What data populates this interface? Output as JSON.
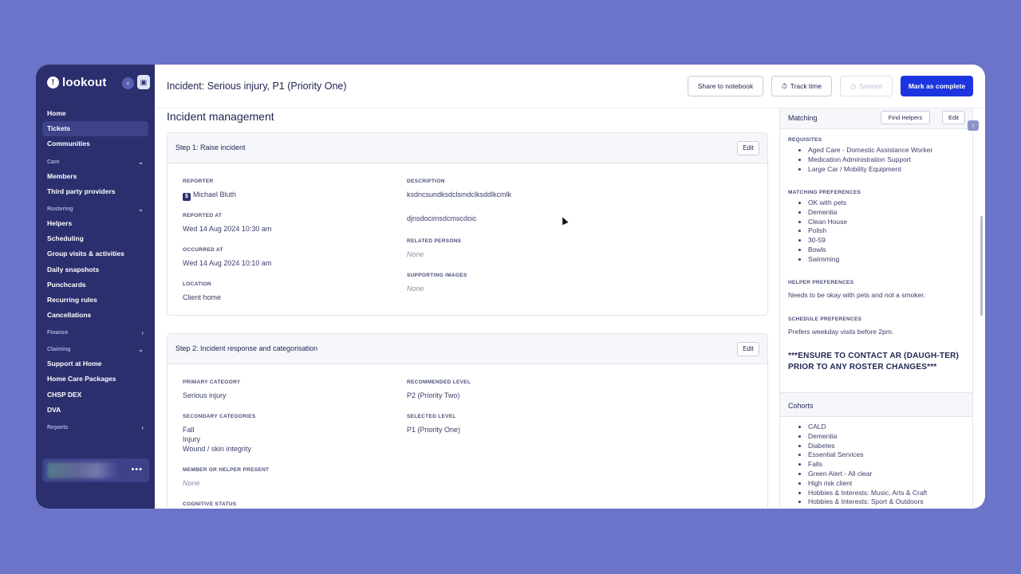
{
  "sidebar": {
    "logo": "lookout",
    "items_top": [
      {
        "label": "Home"
      },
      {
        "label": "Tickets",
        "active": true
      },
      {
        "label": "Communities"
      }
    ],
    "sections": [
      {
        "label": "Care",
        "items": [
          "Members",
          "Third party providers"
        ]
      },
      {
        "label": "Rostering",
        "items": [
          "Helpers",
          "Scheduling",
          "Group visits & activities",
          "Daily snapshots",
          "Punchcards",
          "Recurring rules",
          "Cancellations"
        ]
      },
      {
        "label": "Finance",
        "items": []
      },
      {
        "label": "Claiming",
        "items": [
          "Support at Home",
          "Home Care Packages",
          "CHSP DEX",
          "DVA"
        ]
      },
      {
        "label": "Reports",
        "items": []
      }
    ],
    "user_more": "•••"
  },
  "header": {
    "title": "Incident: Serious injury, P1 (Priority One)",
    "share_label": "Share to notebook",
    "track_label": "Track time",
    "snooze_label": "Snooze",
    "complete_label": "Mark as complete"
  },
  "main": {
    "section_title": "Incident management",
    "step1": {
      "title": "Step 1: Raise incident",
      "edit": "Edit",
      "reporter_label": "REPORTER",
      "reporter_badge": "$",
      "reporter": "Michael Bluth",
      "reported_at_label": "REPORTED AT",
      "reported_at": "Wed 14 Aug 2024 10:30 am",
      "occurred_at_label": "OCCURRED AT",
      "occurred_at": "Wed 14 Aug 2024 10:10 am",
      "location_label": "LOCATION",
      "location": "Client home",
      "description_label": "DESCRIPTION",
      "description_1": "ksdncsundksdclsmdclksddlkcmlk",
      "description_2": "djnsdocimsdcmscdoic",
      "related_label": "RELATED PERSONS",
      "related": "None",
      "images_label": "SUPPORTING IMAGES",
      "images": "None"
    },
    "step2": {
      "title": "Step 2: Incident response and categorisation",
      "edit": "Edit",
      "primary_label": "PRIMARY CATEGORY",
      "primary": "Serious injury",
      "secondary_label": "SECONDARY CATEGORIES",
      "secondary_1": "Fall",
      "secondary_2": "Injury",
      "secondary_3": "Wound / skin integrity",
      "member_present_label": "MEMBER OR HELPER PRESENT",
      "member_present": "None",
      "cognitive_label": "COGNITIVE STATUS",
      "recommended_label": "RECOMMENDED LEVEL",
      "recommended": "P2 (Priority Two)",
      "selected_label": "SELECTED LEVEL",
      "selected": "P1 (Priority One)"
    }
  },
  "panel": {
    "matching_title": "Matching",
    "find_helpers": "Find Helpers",
    "edit": "Edit",
    "requisites_label": "REQUISITES",
    "requisites": [
      "Aged Care - Domestic Assistance Worker",
      "Medication Administration Support",
      "Large Car / Mobility Equipment"
    ],
    "matching_prefs_label": "MATCHING PREFERENCES",
    "matching_prefs": [
      "OK with pets",
      "Dementia",
      "Clean House",
      "Polish",
      "30-59",
      "Bowls",
      "Swimming"
    ],
    "helper_prefs_label": "HELPER PREFERENCES",
    "helper_prefs": "Needs to be okay with pets and not a smoker.",
    "schedule_prefs_label": "SCHEDULE PREFERENCES",
    "schedule_prefs": "Prefers weekday visits before 2pm.",
    "warning": "***ENSURE TO CONTACT AR (DAUGH-TER) PRIOR TO ANY ROSTER CHANGES***",
    "cohorts_title": "Cohorts",
    "cohorts": [
      "CALD",
      "Dementia",
      "Diabetes",
      "Essential Services",
      "Falls",
      "Green Alert - All clear",
      "High risk client",
      "Hobbies & Interests: Music, Arts & Craft",
      "Hobbies & Interests: Sport & Outdoors"
    ]
  }
}
